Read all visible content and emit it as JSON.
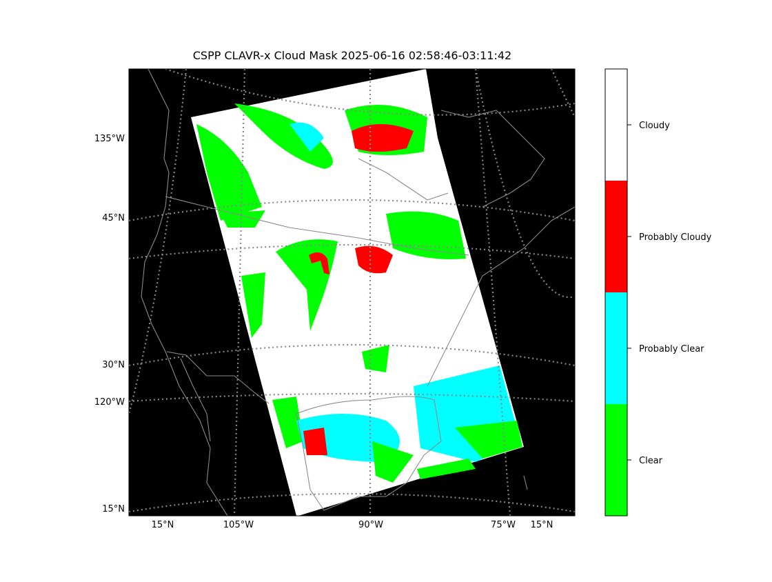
{
  "title": "CSPP CLAVR-x Cloud Mask 2025-06-16 02:58:46-03:11:42",
  "left_labels": [
    "135°W",
    "45°N",
    "30°N",
    "120°W",
    "15°N"
  ],
  "bottom_labels": [
    "15°N",
    "105°W",
    "90°W",
    "75°W",
    "15°N"
  ],
  "colorbar": [
    {
      "label": "Clear",
      "color": "#00ff00"
    },
    {
      "label": "Probably Clear",
      "color": "#00ffff"
    },
    {
      "label": "Probably Cloudy",
      "color": "#ff0000"
    },
    {
      "label": "Cloudy",
      "color": "#ffffff"
    }
  ]
}
